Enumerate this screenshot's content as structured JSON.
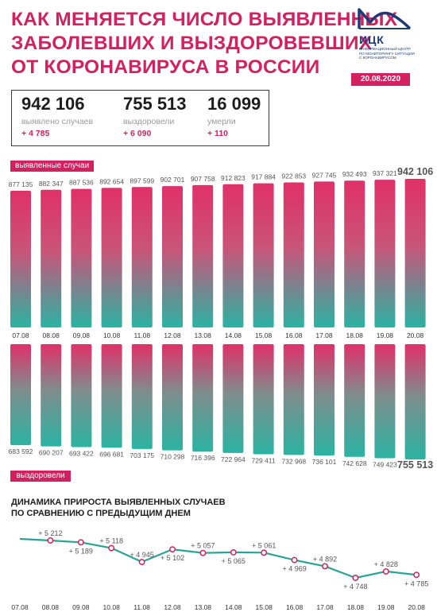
{
  "header": {
    "title_lines": [
      "КАК МЕНЯЕТСЯ ЧИСЛО ВЫЯВЛЕННЫХ",
      "ЗАБОЛЕВШИХ И ВЫЗДОРОВЕВШИХ",
      "ОТ КОРОНАВИРУСА В РОССИИ"
    ],
    "date": "20.08.2020"
  },
  "logo": {
    "abbr": "ИЦК",
    "desc_lines": [
      "ИНФОРМАЦИОННЫЙ ЦЕНТР",
      "ПО МОНИТОРИНГУ СИТУАЦИИ",
      "С КОРОНАВИРУСОМ"
    ]
  },
  "stats": [
    {
      "value": "942 106",
      "label": "выявлено случаев",
      "delta": "+ 4 785"
    },
    {
      "value": "755 513",
      "label": "выздоровели",
      "delta": "+ 6 090"
    },
    {
      "value": "16 099",
      "label": "умерли",
      "delta": "+ 110"
    }
  ],
  "labels": {
    "cases": "выявленные случаи",
    "recovered": "выздоровели"
  },
  "line_title_lines": [
    "ДИНАМИКА ПРИРОСТА ВЫЯВЛЕННЫХ СЛУЧАЕВ",
    "ПО СРАВНЕНИЮ С ПРЕДЫДУЩИМ ДНЕМ"
  ],
  "colors": {
    "accent": "#d4205f",
    "teal": "#2bb3a3",
    "text_dark": "#1d1d1d",
    "line": "#27a497"
  },
  "chart_data": [
    {
      "type": "bar",
      "name": "выявленные случаи",
      "categories": [
        "07.08",
        "08.08",
        "09.08",
        "10.08",
        "11.08",
        "12.08",
        "13.08",
        "14.08",
        "15.08",
        "16.08",
        "17.08",
        "18.08",
        "19.08",
        "20.08"
      ],
      "values": [
        877135,
        882347,
        887536,
        892654,
        897599,
        902701,
        907758,
        912823,
        917884,
        922853,
        927745,
        932493,
        937321,
        942106
      ],
      "value_labels": [
        "877 135",
        "882 347",
        "887 536",
        "892 654",
        "897 599",
        "902 701",
        "907 758",
        "912 823",
        "917 884",
        "922 853",
        "927 745",
        "932 493",
        "937 321",
        "942 106"
      ]
    },
    {
      "type": "bar",
      "name": "выздоровели",
      "categories": [
        "07.08",
        "08.08",
        "09.08",
        "10.08",
        "11.08",
        "12.08",
        "13.08",
        "14.08",
        "15.08",
        "16.08",
        "17.08",
        "18.08",
        "19.08",
        "20.08"
      ],
      "values": [
        683592,
        690207,
        693422,
        696681,
        703175,
        710298,
        716396,
        722964,
        729411,
        732968,
        736101,
        742628,
        749423,
        755513
      ],
      "value_labels": [
        "683 592",
        "690 207",
        "693 422",
        "696 681",
        "703 175",
        "710 298",
        "716 396",
        "722 964",
        "729 411",
        "732 968",
        "736 101",
        "742 628",
        "749 423",
        "755 513"
      ]
    },
    {
      "type": "line",
      "title": "ДИНАМИКА ПРИРОСТА ВЫЯВЛЕННЫХ СЛУЧАЕВ ПО СРАВНЕНИЮ С ПРЕДЫДУЩИМ ДНЕМ",
      "x": [
        "07.08",
        "08.08",
        "09.08",
        "10.08",
        "11.08",
        "12.08",
        "13.08",
        "14.08",
        "15.08",
        "16.08",
        "17.08",
        "18.08",
        "19.08",
        "20.08"
      ],
      "values": [
        null,
        5212,
        5189,
        5118,
        4945,
        5102,
        5057,
        5065,
        5061,
        4969,
        4892,
        4748,
        4828,
        4785
      ],
      "value_labels": [
        "",
        "+ 5 212",
        "+ 5 189",
        "+ 5 118",
        "+ 4 945",
        "+ 5 102",
        "+ 5 057",
        "+ 5 065",
        "+ 5 061",
        "+ 4 969",
        "+ 4 892",
        "+ 4 748",
        "+ 4 828",
        "+ 4 785"
      ],
      "label_side": [
        "",
        "above",
        "below",
        "above",
        "above",
        "below",
        "above",
        "below",
        "above",
        "below",
        "above",
        "below",
        "above",
        "below"
      ]
    }
  ]
}
